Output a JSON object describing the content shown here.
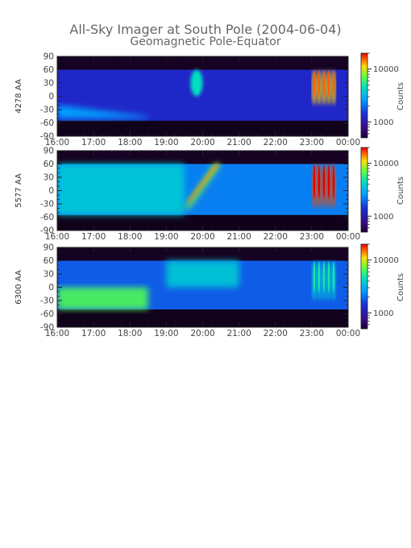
{
  "title": "All-Sky Imager at South Pole (2004-06-04)",
  "subtitle": "Geomagnetic Pole-Equator",
  "chart_data": [
    {
      "type": "heatmap",
      "ylabel": "4278 AA",
      "x_ticks": [
        "16:00",
        "17:00",
        "18:00",
        "19:00",
        "20:00",
        "21:00",
        "22:00",
        "23:00",
        "00:00"
      ],
      "y_ticks": [
        90,
        60,
        30,
        0,
        -30,
        -60,
        -90
      ],
      "ylim": [
        -90,
        90
      ],
      "valid_lat_range": [
        -55,
        60
      ],
      "colorbar": {
        "label": "Counts",
        "ticks": [
          10000,
          1000
        ],
        "tick_labels": [
          "10000",
          "1000"
        ]
      },
      "background_level": 0.25,
      "features": [
        {
          "time": "16:00-18:30",
          "lat": "-50 to -20",
          "level": 0.45,
          "desc": "blue band sloping down"
        },
        {
          "time": "19:40-20:00",
          "lat": "0 to 60",
          "level": 0.6,
          "desc": "cyan streaks"
        },
        {
          "time": "23:00-23:40",
          "lat": "-20 to 60",
          "level": 0.85,
          "desc": "bright green/yellow arcs"
        }
      ]
    },
    {
      "type": "heatmap",
      "ylabel": "5577 AA",
      "x_ticks": [
        "16:00",
        "17:00",
        "18:00",
        "19:00",
        "20:00",
        "21:00",
        "22:00",
        "23:00",
        "00:00"
      ],
      "y_ticks": [
        90,
        60,
        30,
        0,
        -30,
        -60,
        -90
      ],
      "ylim": [
        -90,
        90
      ],
      "valid_lat_range": [
        -55,
        60
      ],
      "colorbar": {
        "label": "Counts",
        "ticks": [
          10000,
          1000
        ],
        "tick_labels": [
          "10000",
          "1000"
        ]
      },
      "background_level": 0.4,
      "features": [
        {
          "time": "16:00-19:30",
          "lat": "-55 to 60",
          "level": 0.55,
          "desc": "cyan/blue diffuse aurora"
        },
        {
          "time": "19:30-20:30",
          "lat": "-40 to 60",
          "level": 0.9,
          "desc": "red/yellow diagonal arc"
        },
        {
          "time": "23:00-23:40",
          "lat": "-40 to 60",
          "level": 0.95,
          "desc": "bright red/yellow arcs"
        }
      ]
    },
    {
      "type": "heatmap",
      "ylabel": "6300 AA",
      "x_ticks": [
        "16:00",
        "17:00",
        "18:00",
        "19:00",
        "20:00",
        "21:00",
        "22:00",
        "23:00",
        "00:00"
      ],
      "y_ticks": [
        90,
        60,
        30,
        0,
        -30,
        -60,
        -90
      ],
      "ylim": [
        -90,
        90
      ],
      "valid_lat_range": [
        -50,
        60
      ],
      "colorbar": {
        "label": "Counts",
        "ticks": [
          10000,
          1000
        ],
        "tick_labels": [
          "10000",
          "1000"
        ]
      },
      "background_level": 0.35,
      "features": [
        {
          "time": "16:00-18:30",
          "lat": "-50 to 0",
          "level": 0.7,
          "desc": "green/yellow diffuse"
        },
        {
          "time": "19:00-21:00",
          "lat": "0 to 60",
          "level": 0.55,
          "desc": "cyan patches"
        },
        {
          "time": "23:00-23:40",
          "lat": "-30 to 60",
          "level": 0.55,
          "desc": "cyan arcs"
        }
      ]
    }
  ]
}
